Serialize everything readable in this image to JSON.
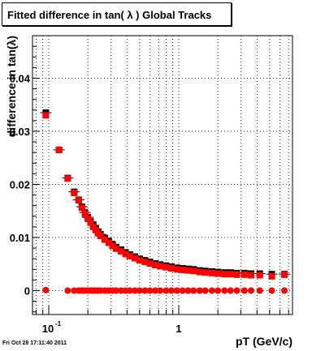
{
  "title": "Fitted difference in tan( λ )  Global Tracks",
  "footer": "Fri Oct 28 17:11:40 2011",
  "chart_data": {
    "type": "scatter",
    "title": "Fitted difference in tan( λ )  Global Tracks",
    "xlabel": "pT (GeV/c)",
    "ylabel": "difference in tan(λ)",
    "xscale": "log",
    "xlim": [
      0.075,
      7.5
    ],
    "ylim": [
      -0.0045,
      0.048
    ],
    "grid": true,
    "x_tick_labels": [
      "10^-1",
      "1"
    ],
    "y_tick_labels": [
      "0",
      "0.01",
      "0.02",
      "0.03",
      "0.04"
    ],
    "series": [
      {
        "color": "#000000",
        "marker": "square",
        "x": [
          0.095,
          0.12,
          0.14,
          0.157,
          0.17,
          0.18,
          0.19,
          0.2,
          0.21,
          0.22,
          0.23,
          0.24,
          0.25,
          0.27,
          0.29,
          0.31,
          0.33,
          0.36,
          0.39,
          0.42,
          0.46,
          0.5,
          0.55,
          0.6,
          0.66,
          0.72,
          0.8,
          0.88,
          0.97,
          1.07,
          1.18,
          1.3,
          1.45,
          1.6,
          1.8,
          2.0,
          2.25,
          2.5,
          2.8,
          3.2,
          3.6,
          4.2,
          5.2,
          6.5
        ],
        "y": [
          0.0335,
          0.0265,
          0.0212,
          0.0186,
          0.0171,
          0.0158,
          0.0147,
          0.0138,
          0.013,
          0.0123,
          0.0116,
          0.0111,
          0.0106,
          0.0099,
          0.0093,
          0.0087,
          0.0082,
          0.0077,
          0.0072,
          0.0068,
          0.0064,
          0.006,
          0.0057,
          0.0054,
          0.0051,
          0.0049,
          0.0047,
          0.0045,
          0.0043,
          0.0042,
          0.0041,
          0.004,
          0.0038,
          0.0037,
          0.0036,
          0.0035,
          0.0034,
          0.0034,
          0.0033,
          0.0033,
          0.0032,
          0.0032,
          0.0031,
          0.0031
        ]
      },
      {
        "color": "#ff0000",
        "marker": "square",
        "x": [
          0.095,
          0.12,
          0.14,
          0.157,
          0.17,
          0.18,
          0.19,
          0.2,
          0.21,
          0.22,
          0.23,
          0.24,
          0.25,
          0.27,
          0.29,
          0.31,
          0.33,
          0.36,
          0.39,
          0.42,
          0.46,
          0.5,
          0.55,
          0.6,
          0.66,
          0.72,
          0.8,
          0.88,
          0.97,
          1.07,
          1.18,
          1.3,
          1.45,
          1.6,
          1.8,
          2.0,
          2.25,
          2.5,
          2.8,
          3.2,
          3.6,
          4.2,
          5.2,
          6.5
        ],
        "y": [
          0.033,
          0.0265,
          0.0211,
          0.0184,
          0.017,
          0.0156,
          0.0145,
          0.0136,
          0.0128,
          0.012,
          0.0114,
          0.0108,
          0.0103,
          0.0096,
          0.009,
          0.0084,
          0.0079,
          0.0074,
          0.0069,
          0.0065,
          0.0061,
          0.0057,
          0.0054,
          0.0051,
          0.0048,
          0.0046,
          0.0044,
          0.0042,
          0.004,
          0.0039,
          0.0038,
          0.0037,
          0.0035,
          0.0034,
          0.0033,
          0.0032,
          0.0031,
          0.0031,
          0.003,
          0.003,
          0.0029,
          0.0029,
          0.0027,
          0.003
        ]
      },
      {
        "color": "#ff0000",
        "marker": "circle",
        "x": [
          0.095,
          0.14,
          0.157,
          0.17,
          0.18,
          0.19,
          0.2,
          0.21,
          0.22,
          0.23,
          0.24,
          0.25,
          0.27,
          0.29,
          0.31,
          0.33,
          0.36,
          0.39,
          0.42,
          0.46,
          0.5,
          0.55,
          0.6,
          0.66,
          0.72,
          0.8,
          0.88,
          0.97,
          1.07,
          1.18,
          1.3,
          1.45,
          1.6,
          1.8,
          2.0,
          2.25,
          2.5,
          2.8,
          3.2,
          3.6,
          4.2,
          5.2,
          6.5
        ],
        "y": [
          0.0001,
          0.0,
          0.0,
          0.0,
          0.0,
          0.0,
          0.0,
          0.0,
          0.0,
          0.0,
          0.0,
          0.0,
          0.0,
          0.0,
          0.0,
          0.0,
          0.0,
          0.0,
          0.0,
          0.0,
          0.0,
          0.0,
          0.0,
          0.0,
          0.0,
          0.0,
          0.0,
          0.0,
          0.0,
          0.0,
          0.0,
          0.0,
          0.0,
          0.0,
          0.0,
          0.0,
          0.0,
          0.0,
          0.0,
          0.0,
          0.0,
          0.0,
          0.0
        ]
      }
    ]
  }
}
